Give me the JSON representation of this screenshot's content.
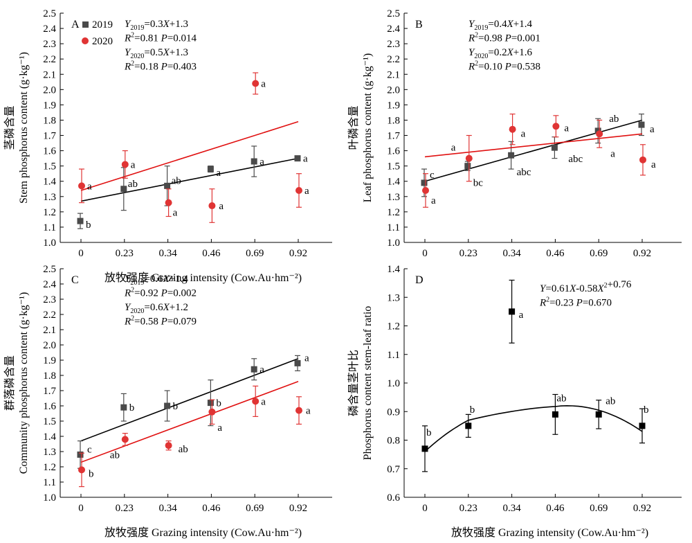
{
  "colors": {
    "s2019": "#4a4a4a",
    "s2020": "#e03434",
    "trend2019": "#000000",
    "trend2020": "#e01010",
    "axis": "#000000"
  },
  "x_axis_title": "放牧强度 Grazing intensity (Cow.Au·hm⁻²)",
  "chart_data": [
    {
      "panel": "A",
      "type": "scatter",
      "ylabel_cn": "茎磷含量",
      "ylabel": "Stem phosphorus content (g·kg⁻¹)",
      "xlabel": "放牧强度 Grazing intensity (Cow.Au·hm⁻²)",
      "xticks": [
        "0",
        "0.23",
        "0.34",
        "0.46",
        "0.69",
        "0.92"
      ],
      "ylim": [
        1.0,
        2.5
      ],
      "yticks": [
        "1.0",
        "1.1",
        "1.2",
        "1.3",
        "1.4",
        "1.5",
        "1.6",
        "1.7",
        "1.8",
        "1.9",
        "2.0",
        "2.1",
        "2.2",
        "2.3",
        "2.4",
        "2.5"
      ],
      "legend": [
        {
          "label": "2019",
          "marker": "square",
          "color": "#4a4a4a"
        },
        {
          "label": "2020",
          "marker": "circle",
          "color": "#e03434"
        }
      ],
      "equations": [
        "Y2019=0.3X+1.3",
        "R2=0.81  P=0.014",
        "Y2020=0.5X+1.3",
        "R2=0.18  P=0.403"
      ],
      "series": [
        {
          "name": "2019",
          "marker": "square",
          "color": "#4a4a4a",
          "points": [
            {
              "x": 0.0,
              "y": 1.14,
              "err": 0.05,
              "label": "b"
            },
            {
              "x": 0.23,
              "y": 1.35,
              "err": 0.14,
              "label": "ab"
            },
            {
              "x": 0.34,
              "y": 1.37,
              "err": 0.13,
              "label": "ab"
            },
            {
              "x": 0.46,
              "y": 1.48,
              "err": 0.02,
              "label": "a"
            },
            {
              "x": 0.69,
              "y": 1.53,
              "err": 0.1,
              "label": "a"
            },
            {
              "x": 0.92,
              "y": 1.55,
              "err": 0.01,
              "label": "a"
            }
          ],
          "trend": {
            "x_start": 0.0,
            "y_start": 1.27,
            "x_end": 0.92,
            "y_end": 1.55
          }
        },
        {
          "name": "2020",
          "marker": "circle",
          "color": "#e03434",
          "points": [
            {
              "x": 0.0,
              "y": 1.37,
              "err": 0.11,
              "label": "a"
            },
            {
              "x": 0.23,
              "y": 1.51,
              "err": 0.09,
              "label": "a"
            },
            {
              "x": 0.34,
              "y": 1.26,
              "err": 0.09,
              "label": "a"
            },
            {
              "x": 0.46,
              "y": 1.24,
              "err": 0.11,
              "label": "a"
            },
            {
              "x": 0.69,
              "y": 2.04,
              "err": 0.07,
              "label": "a"
            },
            {
              "x": 0.92,
              "y": 1.34,
              "err": 0.11,
              "label": "a"
            }
          ],
          "trend": {
            "x_start": 0.0,
            "y_start": 1.34,
            "x_end": 0.92,
            "y_end": 1.79
          }
        }
      ]
    },
    {
      "panel": "B",
      "type": "scatter",
      "ylabel_cn": "叶磷含量",
      "ylabel": "Leaf phosphorus content (g·kg⁻¹)",
      "xlabel": "",
      "xticks": [
        "0",
        "0.23",
        "0.34",
        "0.46",
        "0.69",
        "0.92"
      ],
      "ylim": [
        1.0,
        2.5
      ],
      "yticks": [
        "1.0",
        "1.1",
        "1.2",
        "1.3",
        "1.4",
        "1.5",
        "1.6",
        "1.7",
        "1.8",
        "1.9",
        "2.0",
        "2.1",
        "2.2",
        "2.3",
        "2.4",
        "2.5"
      ],
      "legend": [],
      "equations": [
        "Y2019=0.4X+1.4",
        "R2=0.98  P=0.001",
        "Y2020=0.2X+1.6",
        "R2=0.10  P=0.538"
      ],
      "series": [
        {
          "name": "2019",
          "marker": "square",
          "color": "#4a4a4a",
          "points": [
            {
              "x": 0.0,
              "y": 1.39,
              "err": 0.09,
              "label": "c"
            },
            {
              "x": 0.23,
              "y": 1.5,
              "err": 0.03,
              "label": "bc"
            },
            {
              "x": 0.34,
              "y": 1.57,
              "err": 0.09,
              "label": "abc"
            },
            {
              "x": 0.46,
              "y": 1.62,
              "err": 0.07,
              "label": "abc"
            },
            {
              "x": 0.69,
              "y": 1.73,
              "err": 0.08,
              "label": "ab"
            },
            {
              "x": 0.92,
              "y": 1.77,
              "err": 0.07,
              "label": "a"
            }
          ],
          "trend": {
            "x_start": 0.0,
            "y_start": 1.4,
            "x_end": 0.92,
            "y_end": 1.8
          }
        },
        {
          "name": "2020",
          "marker": "circle",
          "color": "#e03434",
          "points": [
            {
              "x": 0.0,
              "y": 1.34,
              "err": 0.11,
              "label": "a"
            },
            {
              "x": 0.23,
              "y": 1.55,
              "err": 0.15,
              "label": "a"
            },
            {
              "x": 0.34,
              "y": 1.74,
              "err": 0.1,
              "label": "a"
            },
            {
              "x": 0.46,
              "y": 1.76,
              "err": 0.07,
              "label": "a"
            },
            {
              "x": 0.69,
              "y": 1.71,
              "err": 0.09,
              "label": "a"
            },
            {
              "x": 0.92,
              "y": 1.54,
              "err": 0.1,
              "label": "a"
            }
          ],
          "trend": {
            "x_start": 0.0,
            "y_start": 1.56,
            "x_end": 0.92,
            "y_end": 1.71
          }
        }
      ]
    },
    {
      "panel": "C",
      "type": "scatter",
      "ylabel_cn": "群落磷含量",
      "ylabel": "Community phosphorus content (g·kg⁻¹)",
      "xlabel": "放牧强度 Grazing intensity (Cow.Au·hm⁻²)",
      "xticks": [
        "0",
        "0.23",
        "0.34",
        "0.46",
        "0.69",
        "0.92"
      ],
      "ylim": [
        1.0,
        2.5
      ],
      "yticks": [
        "1.0",
        "1.1",
        "1.2",
        "1.3",
        "1.4",
        "1.5",
        "1.6",
        "1.7",
        "1.8",
        "1.9",
        "2.0",
        "2.1",
        "2.2",
        "2.3",
        "2.4",
        "2.5"
      ],
      "legend": [],
      "equations": [
        "Y2019=0.6X+1.4",
        "R2=0.92  P=0.002",
        "Y2020=0.6X+1.2",
        "R2=0.58  P=0.079"
      ],
      "series": [
        {
          "name": "2019",
          "marker": "square",
          "color": "#4a4a4a",
          "points": [
            {
              "x": 0.0,
              "y": 1.28,
              "err": 0.09,
              "label": "c"
            },
            {
              "x": 0.23,
              "y": 1.59,
              "err": 0.09,
              "label": "b"
            },
            {
              "x": 0.34,
              "y": 1.6,
              "err": 0.1,
              "label": "b"
            },
            {
              "x": 0.46,
              "y": 1.62,
              "err": 0.15,
              "label": "b"
            },
            {
              "x": 0.69,
              "y": 1.84,
              "err": 0.07,
              "label": "a"
            },
            {
              "x": 0.92,
              "y": 1.88,
              "err": 0.05,
              "label": "a"
            }
          ],
          "trend": {
            "x_start": 0.0,
            "y_start": 1.37,
            "x_end": 0.92,
            "y_end": 1.91
          }
        },
        {
          "name": "2020",
          "marker": "circle",
          "color": "#e03434",
          "points": [
            {
              "x": 0.0,
              "y": 1.18,
              "err": 0.11,
              "label": "b"
            },
            {
              "x": 0.23,
              "y": 1.38,
              "err": 0.04,
              "label": "ab"
            },
            {
              "x": 0.34,
              "y": 1.34,
              "err": 0.03,
              "label": "ab"
            },
            {
              "x": 0.46,
              "y": 1.56,
              "err": 0.08,
              "label": "a"
            },
            {
              "x": 0.69,
              "y": 1.63,
              "err": 0.1,
              "label": "a"
            },
            {
              "x": 0.92,
              "y": 1.57,
              "err": 0.09,
              "label": "a"
            }
          ],
          "trend": {
            "x_start": 0.0,
            "y_start": 1.23,
            "x_end": 0.92,
            "y_end": 1.76
          }
        }
      ]
    },
    {
      "panel": "D",
      "type": "scatter",
      "ylabel_cn": "磷含量茎叶比",
      "ylabel": "Phosphorus content stem-leaf ratio",
      "xlabel": "放牧强度 Grazing intensity (Cow.Au·hm⁻²)",
      "xticks": [
        "0",
        "0.23",
        "0.34",
        "0.46",
        "0.69",
        "0.92"
      ],
      "ylim": [
        0.6,
        1.4
      ],
      "yticks": [
        "0.6",
        "0.7",
        "0.8",
        "0.9",
        "1.0",
        "1.1",
        "1.2",
        "1.3",
        "1.4"
      ],
      "legend": [],
      "equations": [
        "Y=0.61X-0.58X2+0.76",
        "R2=0.23  P=0.670"
      ],
      "series": [
        {
          "name": "stem-leaf ratio",
          "marker": "square",
          "color": "#000000",
          "points": [
            {
              "x": 0.0,
              "y": 0.77,
              "err": 0.08,
              "label": "b"
            },
            {
              "x": 0.23,
              "y": 0.85,
              "err": 0.04,
              "label": "b"
            },
            {
              "x": 0.34,
              "y": 1.25,
              "err": 0.11,
              "label": "a"
            },
            {
              "x": 0.46,
              "y": 0.89,
              "err": 0.07,
              "label": "ab"
            },
            {
              "x": 0.69,
              "y": 0.89,
              "err": 0.05,
              "label": "ab"
            },
            {
              "x": 0.92,
              "y": 0.85,
              "err": 0.06,
              "label": "b"
            }
          ],
          "curve": {
            "a": -0.58,
            "b": 0.61,
            "c": 0.76
          }
        }
      ]
    }
  ]
}
